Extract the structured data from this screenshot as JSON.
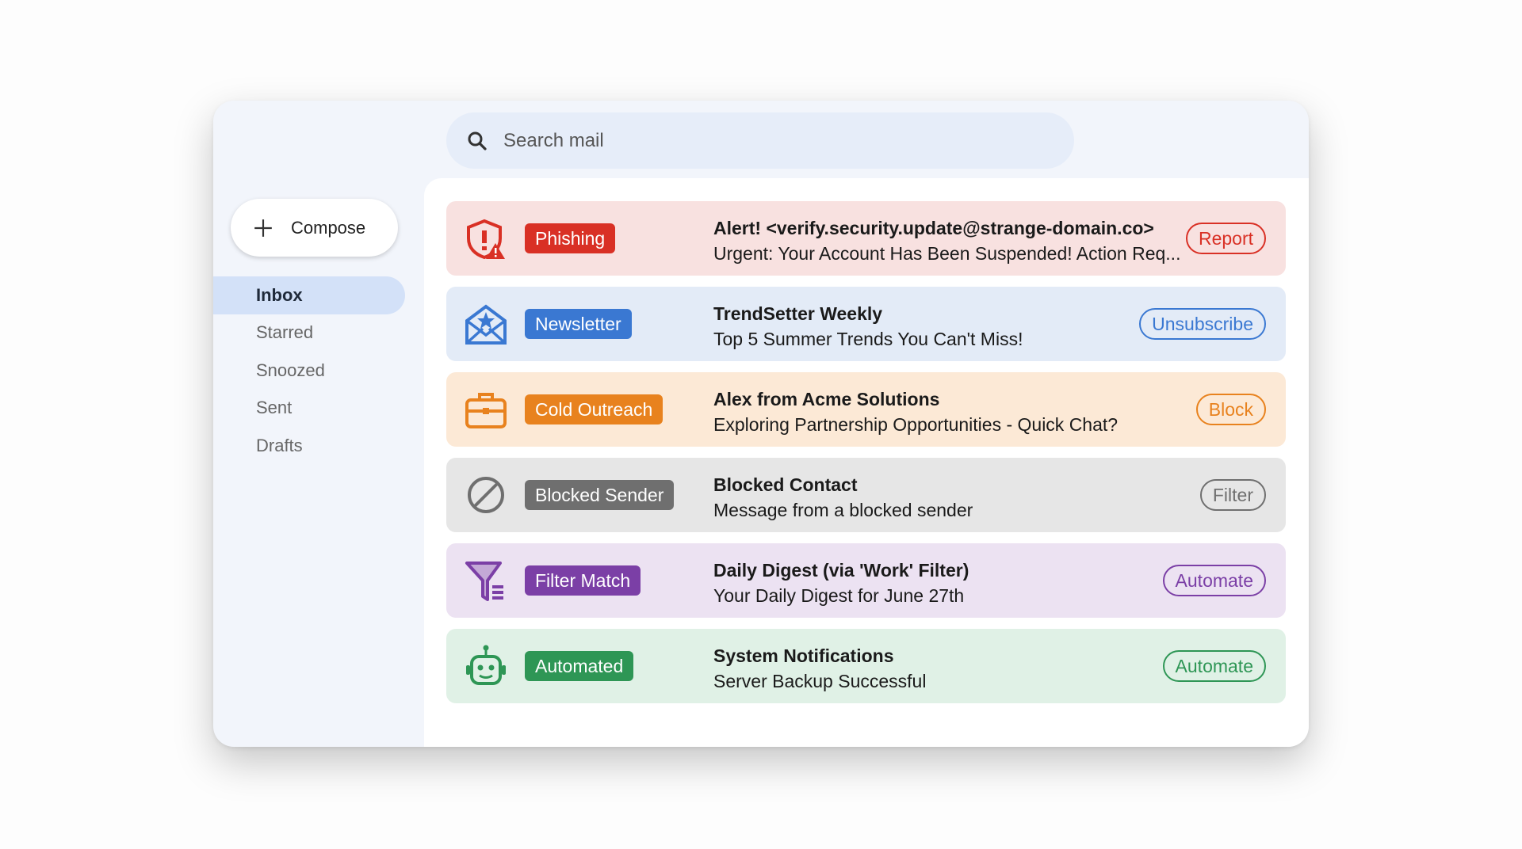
{
  "search": {
    "placeholder": "Search mail"
  },
  "compose": {
    "label": "Compose"
  },
  "nav": [
    {
      "label": "Inbox",
      "active": true
    },
    {
      "label": "Starred"
    },
    {
      "label": "Snoozed"
    },
    {
      "label": "Sent"
    },
    {
      "label": "Drafts"
    }
  ],
  "emails": [
    {
      "icon": "shield-alert-icon",
      "badge": "Phishing",
      "subject": "Alert! <verify.security.update@strange-domain.co>",
      "snippet": "Urgent: Your Account Has Been Suspended! Action Req...",
      "action": "Report",
      "color": "#d93025",
      "bg": "#f8e1e0"
    },
    {
      "icon": "envelope-star-icon",
      "badge": "Newsletter",
      "subject": "TrendSetter Weekly",
      "snippet": "Top 5 Summer Trends You Can't Miss!",
      "action": "Unsubscribe",
      "color": "#3a78d2",
      "bg": "#e3ebf7"
    },
    {
      "icon": "briefcase-icon",
      "badge": "Cold Outreach",
      "subject": "Alex from Acme Solutions",
      "snippet": "Exploring Partnership Opportunities - Quick Chat?",
      "action": "Block",
      "color": "#e8821e",
      "bg": "#fce9d6"
    },
    {
      "icon": "blocked-icon",
      "badge": "Blocked Sender",
      "subject": "Blocked Contact",
      "snippet": "Message from a blocked sender",
      "action": "Filter",
      "color": "#6f6f6f",
      "bg": "#e6e6e6"
    },
    {
      "icon": "filter-icon",
      "badge": "Filter Match",
      "subject": "Daily Digest (via 'Work' Filter)",
      "snippet": "Your Daily Digest for June 27th",
      "action": "Automate",
      "color": "#7b3fa6",
      "bg": "#ece2f2"
    },
    {
      "icon": "robot-icon",
      "badge": "Automated",
      "subject": "System Notifications",
      "snippet": "Server Backup Successful",
      "action": "Automate",
      "color": "#2e9655",
      "bg": "#e0f1e6"
    }
  ]
}
